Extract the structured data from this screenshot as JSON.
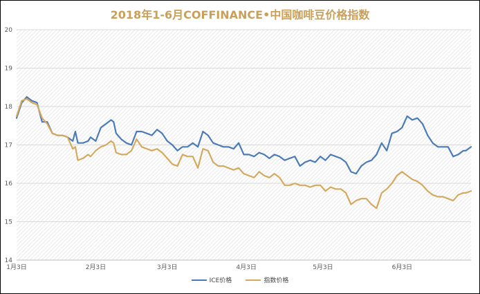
{
  "chart_data": {
    "type": "line",
    "title": "2018年1-6月COFFINANCE•中国咖啡豆价格指数",
    "y_ticks": [
      "14",
      "15",
      "16",
      "17",
      "18",
      "19",
      "20"
    ],
    "ylim": [
      14,
      20
    ],
    "x_ticks": [
      "1月3日",
      "2月3日",
      "3月3日",
      "4月3日",
      "5月3日",
      "6月3日"
    ],
    "x_tick_index": [
      0,
      31,
      59,
      90,
      120,
      151
    ],
    "x_range": [
      0,
      178
    ],
    "grid": true,
    "legend_position": "bottom",
    "series": [
      {
        "name": "ICE价格",
        "color": "#4a7bb7",
        "points": [
          [
            0,
            17.7
          ],
          [
            2,
            18.1
          ],
          [
            4,
            18.25
          ],
          [
            6,
            18.15
          ],
          [
            8,
            18.1
          ],
          [
            10,
            17.6
          ],
          [
            12,
            17.6
          ],
          [
            14,
            17.3
          ],
          [
            16,
            17.25
          ],
          [
            18,
            17.25
          ],
          [
            20,
            17.2
          ],
          [
            22,
            17.1
          ],
          [
            23,
            17.35
          ],
          [
            24,
            17.05
          ],
          [
            26,
            17.05
          ],
          [
            28,
            17.1
          ],
          [
            29,
            17.2
          ],
          [
            31,
            17.1
          ],
          [
            33,
            17.45
          ],
          [
            35,
            17.55
          ],
          [
            37,
            17.65
          ],
          [
            38,
            17.6
          ],
          [
            39,
            17.3
          ],
          [
            41,
            17.15
          ],
          [
            43,
            17.05
          ],
          [
            45,
            17.0
          ],
          [
            47,
            17.35
          ],
          [
            49,
            17.35
          ],
          [
            51,
            17.3
          ],
          [
            53,
            17.25
          ],
          [
            55,
            17.4
          ],
          [
            57,
            17.3
          ],
          [
            59,
            17.1
          ],
          [
            61,
            17.0
          ],
          [
            63,
            16.85
          ],
          [
            65,
            16.95
          ],
          [
            67,
            16.95
          ],
          [
            69,
            17.05
          ],
          [
            71,
            16.95
          ],
          [
            73,
            17.35
          ],
          [
            75,
            17.25
          ],
          [
            77,
            17.05
          ],
          [
            79,
            17.0
          ],
          [
            81,
            16.95
          ],
          [
            83,
            16.95
          ],
          [
            85,
            16.9
          ],
          [
            87,
            17.05
          ],
          [
            89,
            16.75
          ],
          [
            91,
            16.75
          ],
          [
            93,
            16.7
          ],
          [
            95,
            16.8
          ],
          [
            97,
            16.75
          ],
          [
            99,
            16.65
          ],
          [
            101,
            16.75
          ],
          [
            103,
            16.7
          ],
          [
            105,
            16.6
          ],
          [
            107,
            16.65
          ],
          [
            109,
            16.7
          ],
          [
            111,
            16.45
          ],
          [
            113,
            16.55
          ],
          [
            115,
            16.6
          ],
          [
            117,
            16.55
          ],
          [
            119,
            16.7
          ],
          [
            121,
            16.6
          ],
          [
            123,
            16.75
          ],
          [
            125,
            16.7
          ],
          [
            127,
            16.65
          ],
          [
            129,
            16.55
          ],
          [
            131,
            16.3
          ],
          [
            133,
            16.25
          ],
          [
            135,
            16.45
          ],
          [
            137,
            16.55
          ],
          [
            139,
            16.6
          ],
          [
            141,
            16.75
          ],
          [
            143,
            17.05
          ],
          [
            145,
            16.85
          ],
          [
            147,
            17.3
          ],
          [
            149,
            17.35
          ],
          [
            151,
            17.45
          ],
          [
            153,
            17.75
          ],
          [
            155,
            17.65
          ],
          [
            157,
            17.7
          ],
          [
            159,
            17.55
          ],
          [
            161,
            17.25
          ],
          [
            163,
            17.05
          ],
          [
            165,
            16.95
          ],
          [
            167,
            16.95
          ],
          [
            169,
            16.95
          ],
          [
            171,
            16.7
          ],
          [
            173,
            16.75
          ],
          [
            175,
            16.85
          ],
          [
            176,
            16.85
          ],
          [
            178,
            16.95
          ]
        ]
      },
      {
        "name": "指数价格",
        "color": "#d4a95e",
        "points": [
          [
            0,
            17.75
          ],
          [
            2,
            18.15
          ],
          [
            4,
            18.2
          ],
          [
            6,
            18.1
          ],
          [
            8,
            18.05
          ],
          [
            10,
            17.7
          ],
          [
            12,
            17.55
          ],
          [
            14,
            17.3
          ],
          [
            16,
            17.25
          ],
          [
            18,
            17.25
          ],
          [
            20,
            17.2
          ],
          [
            22,
            16.9
          ],
          [
            23,
            16.95
          ],
          [
            24,
            16.6
          ],
          [
            26,
            16.65
          ],
          [
            28,
            16.75
          ],
          [
            29,
            16.7
          ],
          [
            31,
            16.85
          ],
          [
            33,
            16.95
          ],
          [
            35,
            17.0
          ],
          [
            37,
            17.1
          ],
          [
            38,
            17.05
          ],
          [
            39,
            16.8
          ],
          [
            41,
            16.75
          ],
          [
            43,
            16.75
          ],
          [
            45,
            16.85
          ],
          [
            47,
            17.15
          ],
          [
            49,
            16.95
          ],
          [
            51,
            16.9
          ],
          [
            53,
            16.85
          ],
          [
            55,
            16.9
          ],
          [
            57,
            16.8
          ],
          [
            59,
            16.65
          ],
          [
            61,
            16.5
          ],
          [
            63,
            16.45
          ],
          [
            65,
            16.75
          ],
          [
            67,
            16.7
          ],
          [
            69,
            16.7
          ],
          [
            71,
            16.4
          ],
          [
            73,
            16.9
          ],
          [
            75,
            16.85
          ],
          [
            77,
            16.55
          ],
          [
            79,
            16.45
          ],
          [
            81,
            16.45
          ],
          [
            83,
            16.4
          ],
          [
            85,
            16.35
          ],
          [
            87,
            16.4
          ],
          [
            89,
            16.25
          ],
          [
            91,
            16.2
          ],
          [
            93,
            16.15
          ],
          [
            95,
            16.3
          ],
          [
            97,
            16.2
          ],
          [
            99,
            16.15
          ],
          [
            101,
            16.25
          ],
          [
            103,
            16.15
          ],
          [
            105,
            15.95
          ],
          [
            107,
            15.95
          ],
          [
            109,
            16.0
          ],
          [
            111,
            15.95
          ],
          [
            113,
            15.95
          ],
          [
            115,
            15.9
          ],
          [
            117,
            15.95
          ],
          [
            119,
            15.95
          ],
          [
            121,
            15.8
          ],
          [
            123,
            15.9
          ],
          [
            125,
            15.85
          ],
          [
            127,
            15.85
          ],
          [
            129,
            15.75
          ],
          [
            131,
            15.45
          ],
          [
            133,
            15.55
          ],
          [
            135,
            15.6
          ],
          [
            137,
            15.6
          ],
          [
            139,
            15.45
          ],
          [
            141,
            15.35
          ],
          [
            143,
            15.75
          ],
          [
            145,
            15.85
          ],
          [
            147,
            16.0
          ],
          [
            149,
            16.2
          ],
          [
            151,
            16.3
          ],
          [
            153,
            16.2
          ],
          [
            155,
            16.1
          ],
          [
            157,
            16.05
          ],
          [
            159,
            15.95
          ],
          [
            161,
            15.8
          ],
          [
            163,
            15.7
          ],
          [
            165,
            15.65
          ],
          [
            167,
            15.65
          ],
          [
            169,
            15.6
          ],
          [
            171,
            15.55
          ],
          [
            173,
            15.7
          ],
          [
            175,
            15.75
          ],
          [
            176,
            15.75
          ],
          [
            178,
            15.8
          ]
        ]
      }
    ]
  }
}
